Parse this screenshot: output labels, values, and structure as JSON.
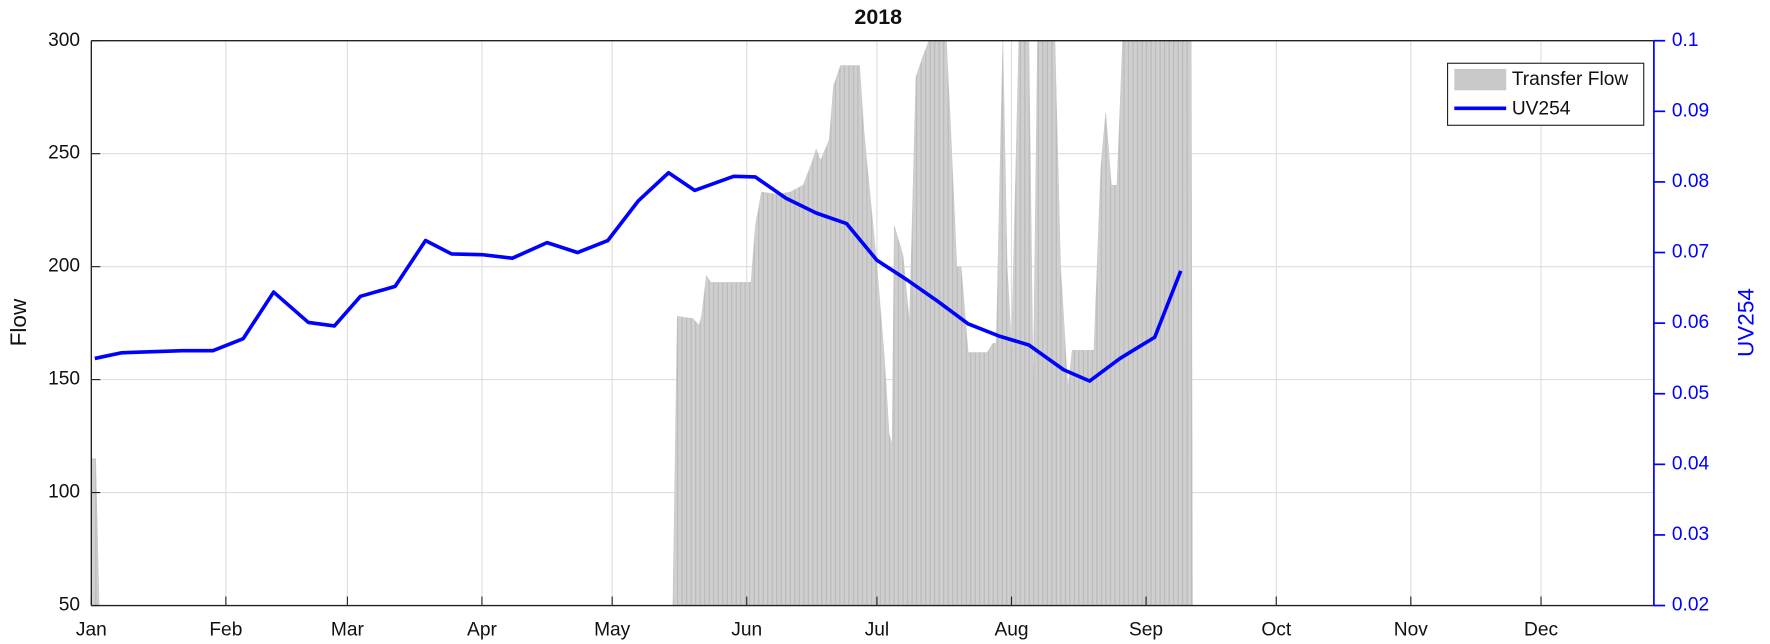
{
  "chart_data": {
    "type": "line",
    "title": "2018",
    "ylabel": "Flow",
    "y2label": "UV254",
    "xlim": [
      0,
      360
    ],
    "xticks": [
      {
        "value": 0,
        "label": "Jan"
      },
      {
        "value": 31,
        "label": "Feb"
      },
      {
        "value": 59,
        "label": "Mar"
      },
      {
        "value": 90,
        "label": "Apr"
      },
      {
        "value": 120,
        "label": "May"
      },
      {
        "value": 151,
        "label": "Jun"
      },
      {
        "value": 181,
        "label": "Jul"
      },
      {
        "value": 212,
        "label": "Aug"
      },
      {
        "value": 243,
        "label": "Sep"
      },
      {
        "value": 273,
        "label": "Oct"
      },
      {
        "value": 304,
        "label": "Nov"
      },
      {
        "value": 334,
        "label": "Dec"
      }
    ],
    "ylim": [
      50,
      300
    ],
    "yticks": [
      50,
      100,
      150,
      200,
      250,
      300
    ],
    "y2lim": [
      0.02,
      0.1
    ],
    "y2ticks": [
      0.02,
      0.03,
      0.04,
      0.05,
      0.06,
      0.07,
      0.08,
      0.09,
      0.1
    ],
    "grid": true,
    "legend": "northeast",
    "series": [
      {
        "name": "Transfer Flow",
        "type": "area",
        "color": "#c8c8c8",
        "x": [
          0,
          1,
          1.8,
          60,
          134,
          135,
          138.6,
          140,
          140.6,
          141.7,
          142.7,
          152,
          153,
          154.4,
          158,
          161,
          164,
          166,
          167,
          168,
          170,
          171,
          172.6,
          177,
          178,
          179,
          181,
          182.7,
          183.8,
          184.5,
          185,
          187,
          188.5,
          190,
          191.6,
          193,
          197,
          198,
          199.4,
          200.4,
          202,
          206.4,
          207.7,
          208.5,
          210,
          211,
          212,
          213.7,
          216,
          217,
          218,
          222,
          223.3,
          225,
          226,
          231,
          232.6,
          233.7,
          235,
          236.3,
          237.6,
          253.4,
          253.7
        ],
        "values": [
          115,
          115,
          50,
          null,
          50,
          178,
          177,
          174,
          178,
          196,
          193,
          193,
          218,
          233,
          232,
          233,
          236,
          246,
          252,
          247,
          256,
          280,
          289,
          289,
          260,
          240,
          200,
          160,
          126,
          121,
          218,
          205,
          175,
          284,
          293,
          300,
          300,
          260,
          200,
          200,
          162,
          162,
          166,
          166,
          300,
          200,
          164,
          300,
          300,
          145,
          300,
          300,
          200,
          146,
          163,
          163,
          244,
          268,
          236,
          236,
          300,
          300,
          50
        ]
      },
      {
        "name": "UV254",
        "type": "line",
        "color": "#0000ff",
        "axis": "y2",
        "x": [
          0.8,
          7,
          21,
          28,
          35,
          42,
          50,
          56,
          62,
          70,
          77,
          83,
          90,
          97,
          105,
          112,
          119,
          126,
          133,
          139,
          148,
          153,
          160,
          167,
          174,
          181,
          188,
          195,
          202,
          209,
          216,
          224,
          230,
          237,
          245,
          251
        ],
        "values": [
          0.055,
          0.0558,
          0.0561,
          0.0561,
          0.0578,
          0.0644,
          0.0601,
          0.0596,
          0.0638,
          0.0652,
          0.0717,
          0.0698,
          0.0697,
          0.0692,
          0.0714,
          0.07,
          0.0717,
          0.0773,
          0.0813,
          0.0788,
          0.0808,
          0.0807,
          0.0777,
          0.0756,
          0.0741,
          0.0689,
          0.0661,
          0.0631,
          0.0599,
          0.0582,
          0.0569,
          0.0534,
          0.0518,
          0.055,
          0.058,
          0.0674
        ]
      }
    ]
  }
}
